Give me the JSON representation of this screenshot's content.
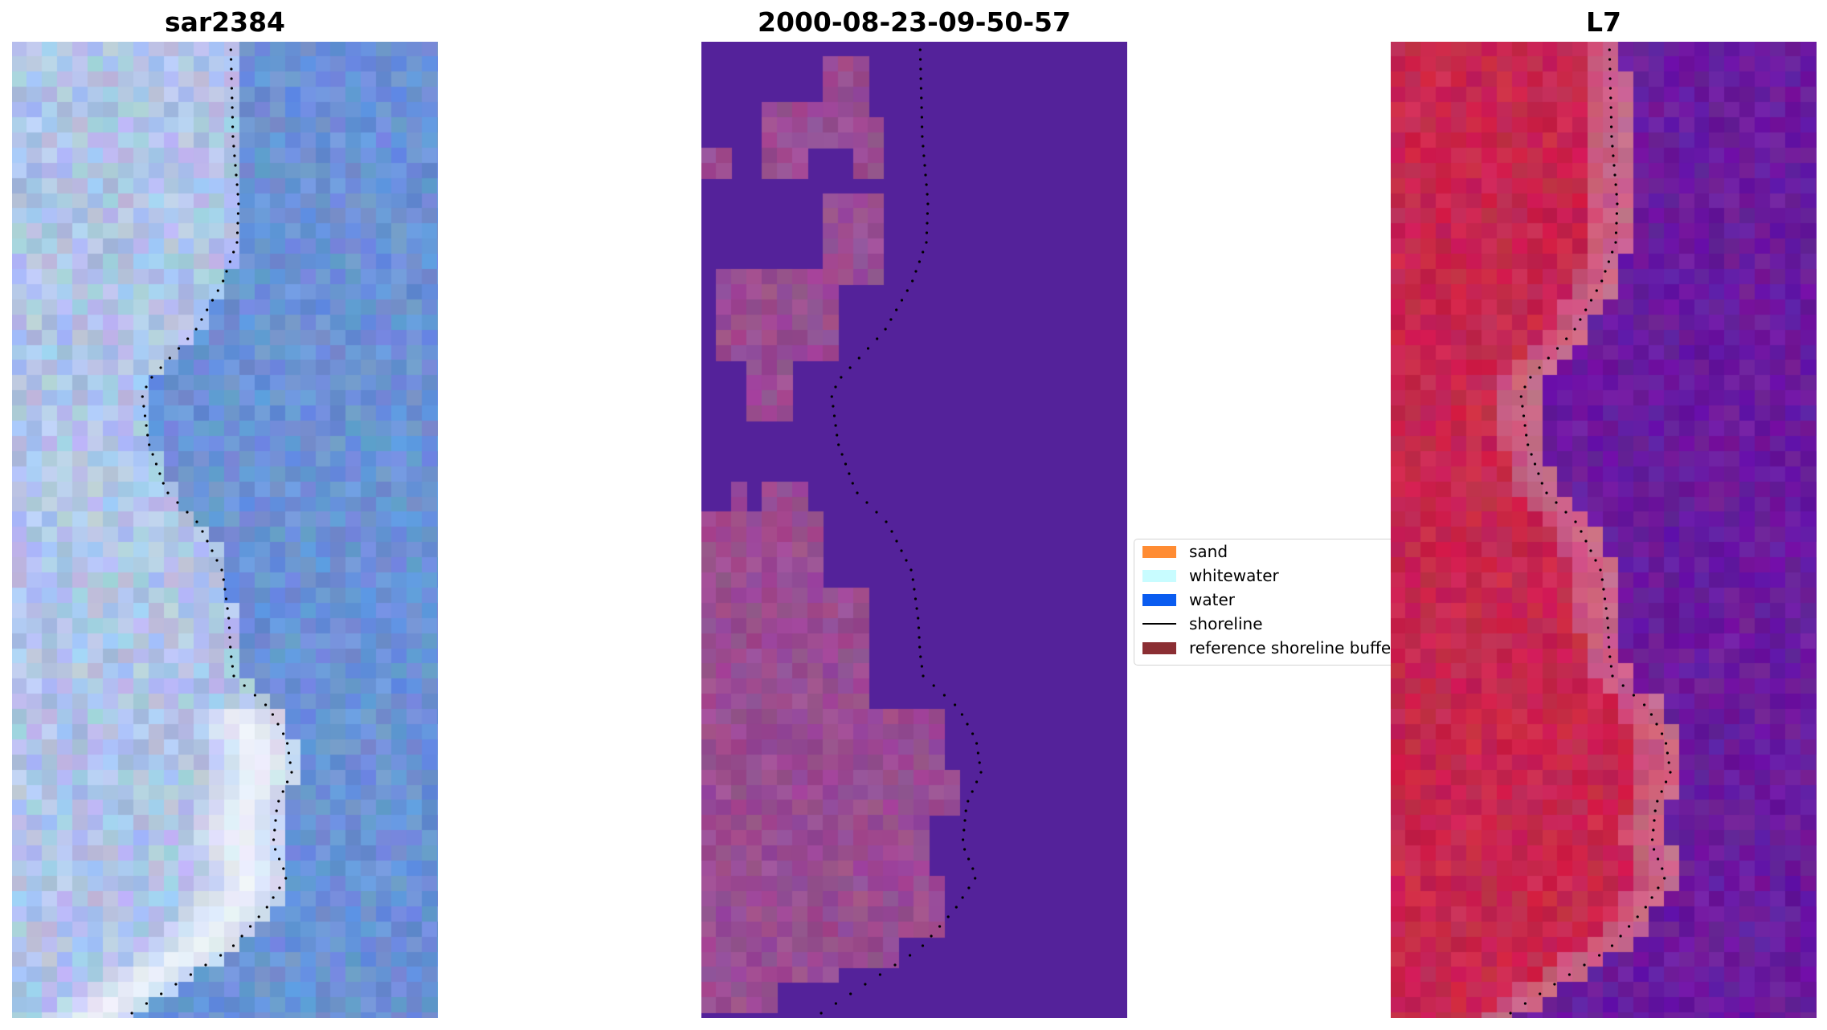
{
  "panels": [
    {
      "title": "sar2384",
      "kind": "rgb"
    },
    {
      "title": "2000-08-23-09-50-57",
      "kind": "classified"
    },
    {
      "title": "L7",
      "kind": "index"
    }
  ],
  "legend": {
    "items": [
      {
        "label": "sand",
        "type": "patch",
        "color": "#ff8c33"
      },
      {
        "label": "whitewater",
        "type": "patch",
        "color": "#c8fcff"
      },
      {
        "label": "water",
        "type": "patch",
        "color": "#0a5cf0"
      },
      {
        "label": "shoreline",
        "type": "line",
        "color": "#000000"
      },
      {
        "label": "reference shoreline buffer",
        "type": "patch",
        "color": "#8b2e33"
      }
    ]
  },
  "colors": {
    "rgb_land": "#b0c4e8",
    "rgb_water": "#6a92d6",
    "class_water": "#54229a",
    "class_land": "#9a4c92",
    "index_land": "#c8264e",
    "index_water": "#6a1a9e"
  }
}
